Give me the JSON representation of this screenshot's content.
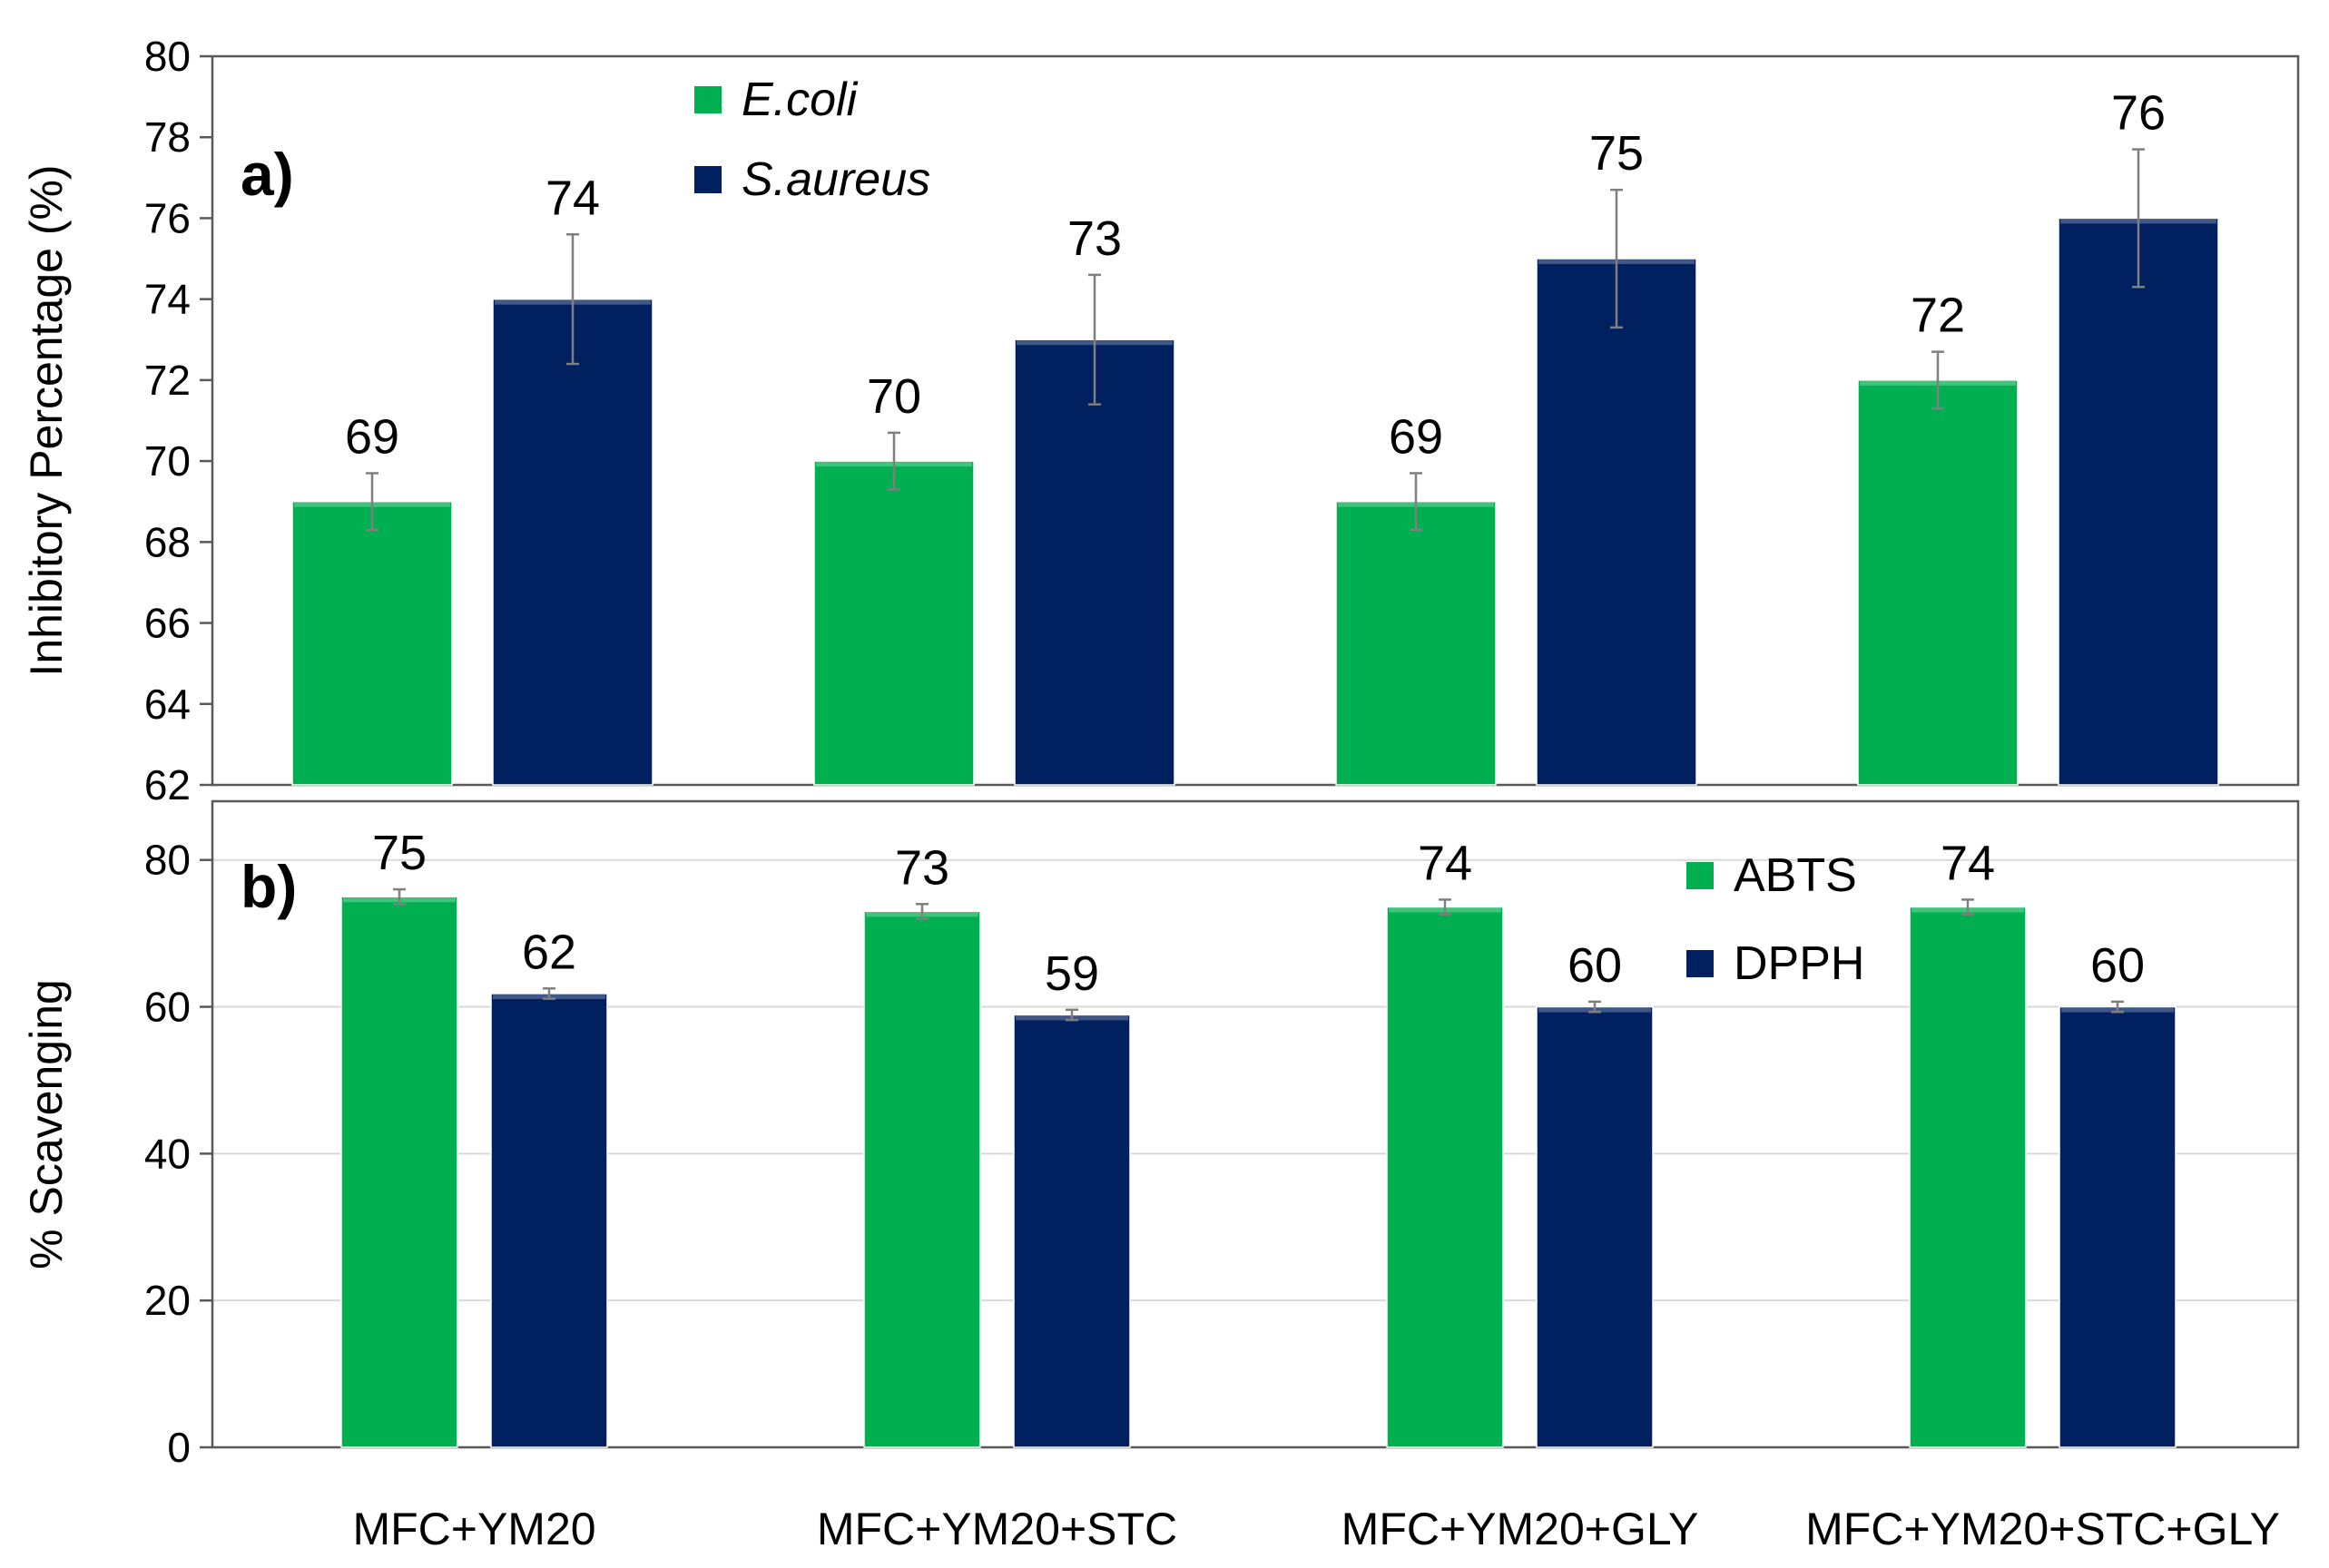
{
  "colors": {
    "green": "#00b050",
    "navy": "#002060",
    "grid": "#d9d9d9",
    "axis": "#595959",
    "error": "#7f7f7f"
  },
  "categories": [
    "MFC+YM20",
    "MFC+YM20+STC",
    "MFC+YM20+GLY",
    "MFC+YM20+STC+GLY"
  ],
  "chart_data": [
    {
      "type": "bar",
      "panel_label": "a)",
      "ylabel": "Inhibitory Percentage (%)",
      "ylim": [
        62,
        80
      ],
      "yticks": [
        62,
        64,
        66,
        68,
        70,
        72,
        74,
        76,
        78,
        80
      ],
      "grid": false,
      "legend_position": "top-left",
      "series": [
        {
          "name": "E.coli",
          "color": "#00b050",
          "values": [
            69,
            70,
            69,
            72
          ],
          "errors": [
            0.7,
            0.7,
            0.7,
            0.7
          ],
          "labels": [
            "69",
            "70",
            "69",
            "72"
          ]
        },
        {
          "name": "S.aureus",
          "color": "#002060",
          "values": [
            74,
            73,
            75,
            76
          ],
          "errors": [
            1.6,
            1.6,
            1.7,
            1.7
          ],
          "labels": [
            "74",
            "73",
            "75",
            "76"
          ]
        }
      ]
    },
    {
      "type": "bar",
      "panel_label": "b)",
      "ylabel": "% Scavenging",
      "ylim": [
        0,
        88
      ],
      "yticks": [
        0,
        20,
        40,
        60,
        80
      ],
      "grid": true,
      "legend_position": "top-right",
      "series": [
        {
          "name": "ABTS",
          "color": "#00b050",
          "values": [
            75,
            73,
            73.6,
            73.6
          ],
          "errors": [
            1.0,
            1.0,
            1.0,
            1.0
          ],
          "labels": [
            "75",
            "73",
            "74",
            "74"
          ]
        },
        {
          "name": "DPPH",
          "color": "#002060",
          "values": [
            61.8,
            58.9,
            60,
            60
          ],
          "errors": [
            0.7,
            0.7,
            0.7,
            0.7
          ],
          "labels": [
            "62",
            "59",
            "60",
            "60"
          ]
        }
      ]
    }
  ]
}
